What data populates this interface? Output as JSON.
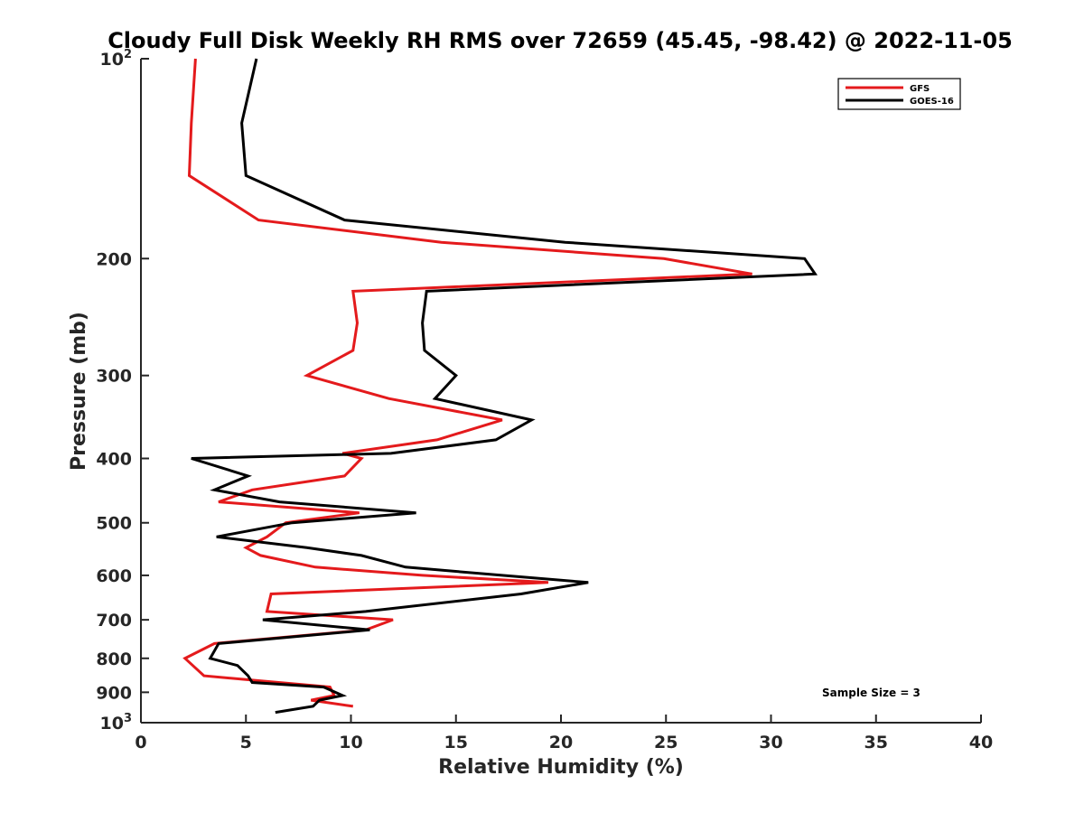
{
  "chart_data": {
    "type": "line",
    "title": "Cloudy Full Disk Weekly RH RMS over 72659 (45.45, -98.42) @ 2022-11-05",
    "xlabel": "Relative Humidity (%)",
    "ylabel": "Pressure (mb)",
    "xlim": [
      0,
      40
    ],
    "ylim": [
      100,
      1000
    ],
    "y_scale": "log",
    "y_reversed": true,
    "grid": false,
    "legend_position": "top-right",
    "x_ticks": [
      "0",
      "5",
      "10",
      "15",
      "20",
      "25",
      "30",
      "35",
      "40"
    ],
    "y_ticks": [
      {
        "value": 100,
        "base": "10",
        "sup": "2"
      },
      {
        "value": 200,
        "label": "200"
      },
      {
        "value": 300,
        "label": "300"
      },
      {
        "value": 400,
        "label": "400"
      },
      {
        "value": 500,
        "label": "500"
      },
      {
        "value": 600,
        "label": "600"
      },
      {
        "value": 700,
        "label": "700"
      },
      {
        "value": 800,
        "label": "800"
      },
      {
        "value": 900,
        "label": "900"
      },
      {
        "value": 1000,
        "base": "10",
        "sup": "3"
      }
    ],
    "annotation": "Sample Size = 3",
    "series": [
      {
        "name": "GFS",
        "color": "#e41a1c",
        "points": [
          [
            2.6,
            100
          ],
          [
            2.4,
            125
          ],
          [
            2.3,
            150
          ],
          [
            5.6,
            175
          ],
          [
            14.3,
            189
          ],
          [
            24.9,
            200
          ],
          [
            29.1,
            211
          ],
          [
            10.1,
            224
          ],
          [
            10.3,
            250
          ],
          [
            10.1,
            275
          ],
          [
            7.9,
            300
          ],
          [
            11.8,
            325
          ],
          [
            17.2,
            350
          ],
          [
            14.1,
            375
          ],
          [
            9.6,
            393
          ],
          [
            10.5,
            400
          ],
          [
            9.7,
            425
          ],
          [
            5.3,
            446
          ],
          [
            3.7,
            465
          ],
          [
            10.4,
            483
          ],
          [
            6.9,
            500
          ],
          [
            6.0,
            525
          ],
          [
            5.0,
            545
          ],
          [
            5.7,
            560
          ],
          [
            8.3,
            583
          ],
          [
            13.4,
            600
          ],
          [
            19.4,
            615
          ],
          [
            6.2,
            640
          ],
          [
            6.0,
            680
          ],
          [
            12.0,
            700
          ],
          [
            10.7,
            725
          ],
          [
            3.5,
            760
          ],
          [
            2.1,
            800
          ],
          [
            3.0,
            850
          ],
          [
            9.0,
            884
          ],
          [
            9.2,
            910
          ],
          [
            8.1,
            925
          ],
          [
            10.1,
            945
          ]
        ]
      },
      {
        "name": "GOES-16",
        "color": "#000000",
        "points": [
          [
            5.5,
            100
          ],
          [
            4.8,
            125
          ],
          [
            5.0,
            150
          ],
          [
            9.7,
            175
          ],
          [
            20.2,
            189
          ],
          [
            31.6,
            200
          ],
          [
            32.1,
            211
          ],
          [
            13.6,
            224
          ],
          [
            13.4,
            250
          ],
          [
            13.5,
            275
          ],
          [
            15.0,
            300
          ],
          [
            14.0,
            325
          ],
          [
            18.6,
            350
          ],
          [
            16.9,
            375
          ],
          [
            11.9,
            393
          ],
          [
            2.4,
            400
          ],
          [
            5.1,
            425
          ],
          [
            3.5,
            446
          ],
          [
            6.6,
            465
          ],
          [
            13.1,
            483
          ],
          [
            7.2,
            500
          ],
          [
            3.6,
            525
          ],
          [
            7.9,
            545
          ],
          [
            10.5,
            560
          ],
          [
            12.6,
            583
          ],
          [
            17.2,
            600
          ],
          [
            21.3,
            615
          ],
          [
            18.1,
            640
          ],
          [
            10.7,
            680
          ],
          [
            5.8,
            700
          ],
          [
            10.9,
            725
          ],
          [
            3.7,
            760
          ],
          [
            3.3,
            800
          ],
          [
            4.6,
            820
          ],
          [
            5.1,
            850
          ],
          [
            5.3,
            870
          ],
          [
            8.7,
            884
          ],
          [
            9.6,
            910
          ],
          [
            8.5,
            925
          ],
          [
            8.2,
            945
          ],
          [
            6.4,
            965
          ]
        ]
      }
    ]
  }
}
